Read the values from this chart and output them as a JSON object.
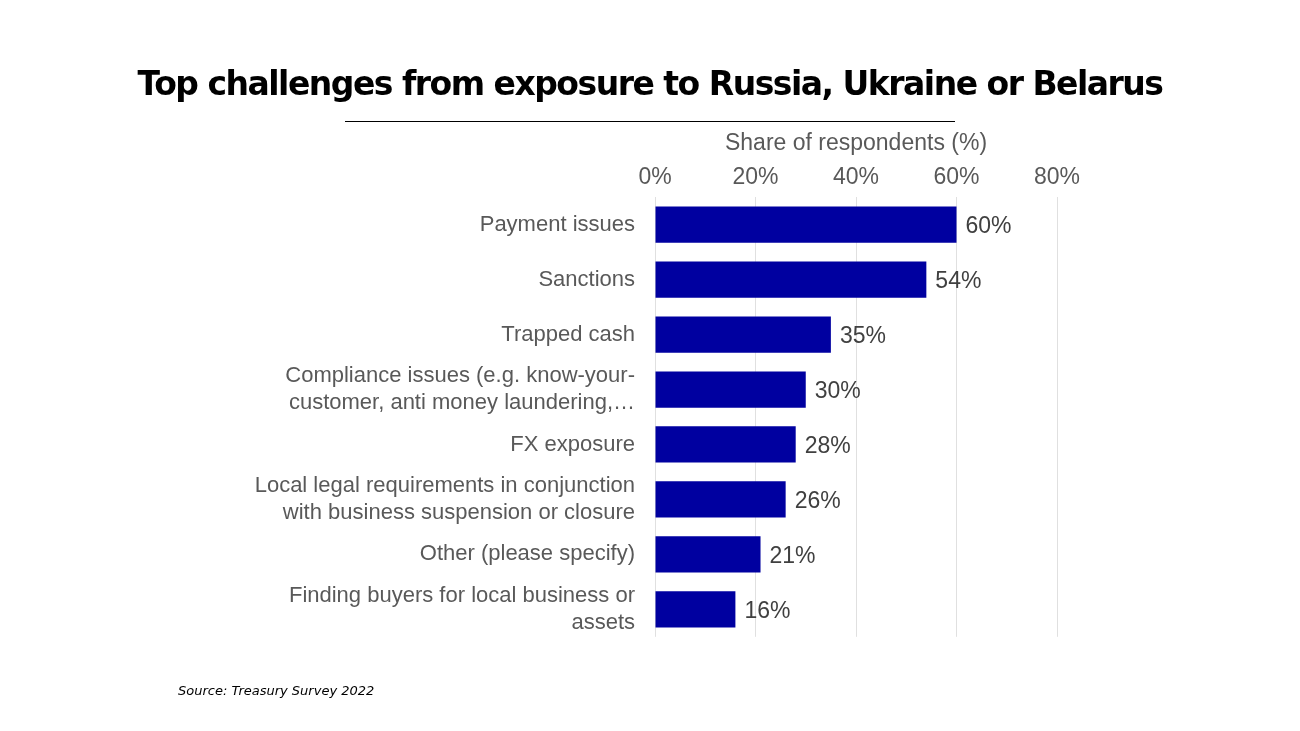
{
  "chart_data": {
    "type": "bar",
    "orientation": "horizontal",
    "title": "Top challenges from exposure to Russia, Ukraine or Belarus",
    "xlabel": "Share of respondents (%)",
    "categories": [
      "Payment issues",
      "Sanctions",
      "Trapped cash",
      "Compliance issues (e.g. know-your-customer, anti money laundering,…",
      "FX exposure",
      "Local legal requirements in conjunction with business suspension or closure",
      "Other (please specify)",
      "Finding buyers for local business or assets"
    ],
    "values": [
      60,
      54,
      35,
      30,
      28,
      26,
      21,
      16
    ],
    "value_labels": [
      "60%",
      "54%",
      "35%",
      "30%",
      "28%",
      "26%",
      "21%",
      "16%"
    ],
    "color": "#0000a0",
    "xlim": [
      0,
      80
    ],
    "xticks": [
      {
        "value": 0,
        "label": "0%"
      },
      {
        "value": 20,
        "label": "20%"
      },
      {
        "value": 40,
        "label": "40%"
      },
      {
        "value": 60,
        "label": "60%"
      },
      {
        "value": 80,
        "label": "80%"
      }
    ],
    "grid": "x",
    "annotations": [
      "Source: Treasury Survey 2022"
    ]
  }
}
